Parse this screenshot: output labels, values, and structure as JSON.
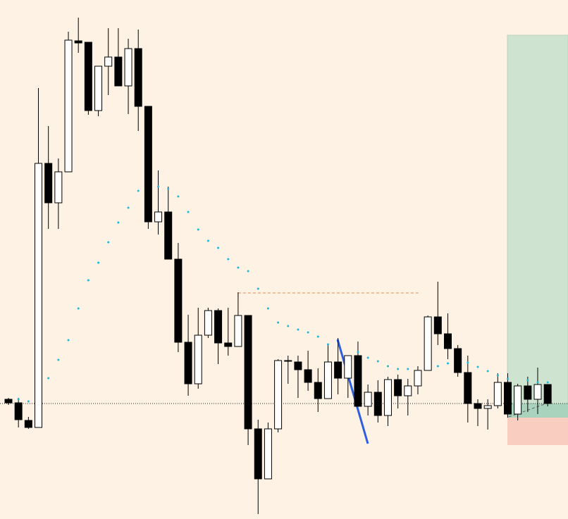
{
  "chart_data": {
    "type": "candlestick",
    "candles": [
      [
        170,
        172,
        162,
        165
      ],
      [
        165,
        172,
        130,
        141
      ],
      [
        140,
        145,
        128,
        130
      ],
      [
        130,
        612,
        130,
        505
      ],
      [
        505,
        558,
        412,
        449
      ],
      [
        449,
        512,
        412,
        493
      ],
      [
        493,
        692,
        493,
        680
      ],
      [
        679,
        712,
        662,
        676
      ],
      [
        677,
        677,
        574,
        580
      ],
      [
        580,
        643,
        572,
        643
      ],
      [
        643,
        697,
        602,
        656
      ],
      [
        656,
        697,
        615,
        615
      ],
      [
        615,
        682,
        575,
        668
      ],
      [
        668,
        695,
        551,
        586
      ],
      [
        586,
        586,
        412,
        422
      ],
      [
        422,
        495,
        404,
        436
      ],
      [
        436,
        472,
        369,
        369
      ],
      [
        369,
        392,
        237,
        251
      ],
      [
        251,
        290,
        175,
        192
      ],
      [
        192,
        300,
        185,
        261
      ],
      [
        261,
        300,
        257,
        296
      ],
      [
        296,
        299,
        220,
        250
      ],
      [
        250,
        300,
        232,
        245
      ],
      [
        245,
        322,
        245,
        289
      ],
      [
        289,
        289,
        105,
        128
      ],
      [
        128,
        141,
        7,
        57
      ],
      [
        57,
        137,
        57,
        128
      ],
      [
        128,
        227,
        123,
        225
      ],
      [
        225,
        232,
        192,
        225
      ],
      [
        223,
        232,
        172,
        212
      ],
      [
        212,
        239,
        182,
        194
      ],
      [
        194,
        214,
        152,
        171
      ],
      [
        171,
        249,
        171,
        223
      ],
      [
        223,
        257,
        177,
        200
      ],
      [
        200,
        232,
        172,
        232
      ],
      [
        232,
        252,
        160,
        160
      ],
      [
        160,
        191,
        147,
        180
      ],
      [
        180,
        197,
        137,
        147
      ],
      [
        147,
        202,
        132,
        198
      ],
      [
        198,
        205,
        157,
        175
      ],
      [
        175,
        199,
        147,
        189
      ],
      [
        189,
        217,
        177,
        211
      ],
      [
        211,
        289,
        211,
        287
      ],
      [
        287,
        337,
        247,
        263
      ],
      [
        263,
        292,
        227,
        242
      ],
      [
        242,
        247,
        202,
        208
      ],
      [
        208,
        232,
        137,
        164
      ],
      [
        164,
        170,
        132,
        157
      ],
      [
        157,
        170,
        127,
        161
      ],
      [
        161,
        207,
        157,
        194
      ],
      [
        194,
        207,
        144,
        149
      ],
      [
        149,
        192,
        140,
        189
      ],
      [
        189,
        202,
        152,
        170
      ],
      [
        170,
        215,
        149,
        191
      ],
      [
        191,
        191,
        160,
        164
      ]
    ],
    "sar": [
      null,
      170,
      167,
      null,
      200,
      226,
      254,
      299,
      339,
      364,
      393,
      421,
      442,
      466,
      null,
      472,
      469,
      458,
      436,
      411,
      395,
      385,
      369,
      357,
      352,
      327,
      299,
      279,
      274,
      269,
      265,
      259,
      248,
      null,
      null,
      237,
      229,
      224,
      217,
      213,
      213,
      null,
      null,
      217,
      221,
      null,
      222,
      216,
      210,
      204,
      199,
      null,
      197,
      194,
      194
    ],
    "sar_color": "#1fb8d8",
    "up_color": "#ffffff",
    "down_color": "#000000",
    "price_line": 164,
    "level": 321,
    "level_color": "#e08a4a",
    "ylim": [
      0,
      737
    ]
  }
}
